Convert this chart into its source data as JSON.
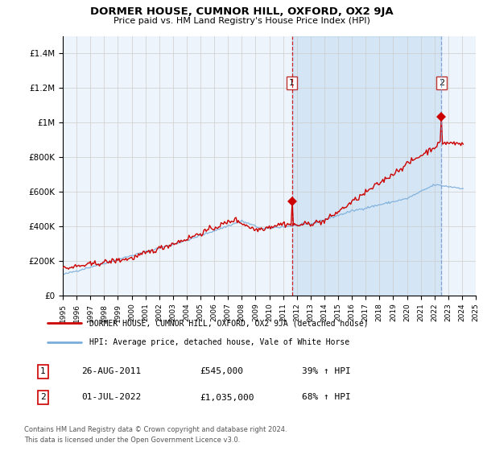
{
  "title": "DORMER HOUSE, CUMNOR HILL, OXFORD, OX2 9JA",
  "subtitle": "Price paid vs. HM Land Registry's House Price Index (HPI)",
  "background_color": "#ffffff",
  "chart_bg_color": "#eef4fb",
  "grid_color": "#cccccc",
  "red_color": "#cc0000",
  "blue_color": "#7aaddb",
  "sale1_year": 2011.65,
  "sale1_price": 545000,
  "sale1_label": "1",
  "sale1_date": "26-AUG-2011",
  "sale1_hpi": "39% ↑ HPI",
  "sale2_year": 2022.5,
  "sale2_price": 1035000,
  "sale2_label": "2",
  "sale2_date": "01-JUL-2022",
  "sale2_hpi": "68% ↑ HPI",
  "legend_line1": "DORMER HOUSE, CUMNOR HILL, OXFORD, OX2 9JA (detached house)",
  "legend_line2": "HPI: Average price, detached house, Vale of White Horse",
  "footer1": "Contains HM Land Registry data © Crown copyright and database right 2024.",
  "footer2": "This data is licensed under the Open Government Licence v3.0.",
  "ylim_max": 1500000,
  "xticks": [
    1995,
    1996,
    1997,
    1998,
    1999,
    2000,
    2001,
    2002,
    2003,
    2004,
    2005,
    2006,
    2007,
    2008,
    2009,
    2010,
    2011,
    2012,
    2013,
    2014,
    2015,
    2016,
    2017,
    2018,
    2019,
    2020,
    2021,
    2022,
    2023,
    2024,
    2025
  ],
  "yticks": [
    0,
    200000,
    400000,
    600000,
    800000,
    1000000,
    1200000,
    1400000
  ],
  "ytick_labels": [
    "£0",
    "£200K",
    "£400K",
    "£600K",
    "£800K",
    "£1M",
    "£1.2M",
    "£1.4M"
  ]
}
